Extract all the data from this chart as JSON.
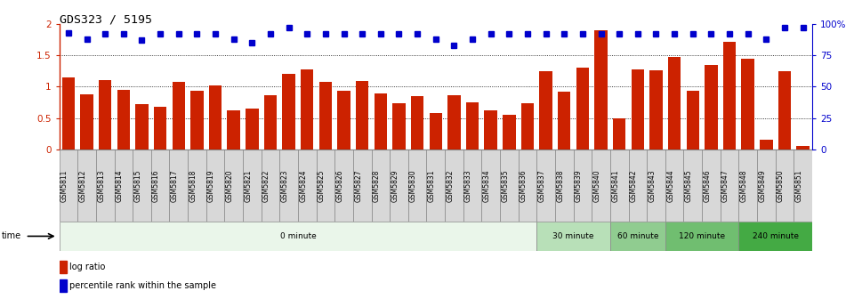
{
  "title": "GDS323 / 5195",
  "categories": [
    "GSM5811",
    "GSM5812",
    "GSM5813",
    "GSM5814",
    "GSM5815",
    "GSM5816",
    "GSM5817",
    "GSM5818",
    "GSM5819",
    "GSM5820",
    "GSM5821",
    "GSM5822",
    "GSM5823",
    "GSM5824",
    "GSM5825",
    "GSM5826",
    "GSM5827",
    "GSM5828",
    "GSM5829",
    "GSM5830",
    "GSM5831",
    "GSM5832",
    "GSM5833",
    "GSM5834",
    "GSM5835",
    "GSM5836",
    "GSM5837",
    "GSM5838",
    "GSM5839",
    "GSM5840",
    "GSM5841",
    "GSM5842",
    "GSM5843",
    "GSM5844",
    "GSM5845",
    "GSM5846",
    "GSM5847",
    "GSM5848",
    "GSM5849",
    "GSM5850",
    "GSM5851"
  ],
  "log_ratio": [
    1.15,
    0.88,
    1.1,
    0.95,
    0.72,
    0.68,
    1.08,
    0.93,
    1.02,
    0.63,
    0.65,
    0.86,
    1.2,
    1.27,
    1.08,
    0.93,
    1.09,
    0.89,
    0.73,
    0.85,
    0.58,
    0.86,
    0.75,
    0.62,
    0.55,
    0.74,
    1.25,
    0.92,
    1.3,
    1.9,
    0.5,
    1.28,
    1.26,
    1.48,
    0.93,
    1.35,
    1.72,
    1.45,
    0.16,
    1.25,
    0.05
  ],
  "percentile": [
    93,
    88,
    92,
    92,
    87,
    92,
    92,
    92,
    92,
    88,
    85,
    92,
    97,
    92,
    92,
    92,
    92,
    92,
    92,
    92,
    88,
    83,
    88,
    92,
    92,
    92,
    92,
    92,
    92,
    92,
    92,
    92,
    92,
    92,
    92,
    92,
    92,
    92,
    88,
    97,
    97
  ],
  "bar_color": "#cc2200",
  "dot_color": "#0000cc",
  "time_groups": [
    {
      "label": "0 minute",
      "start": 0,
      "end": 26,
      "color": "#eaf6ea"
    },
    {
      "label": "30 minute",
      "start": 26,
      "end": 30,
      "color": "#b8e0b8"
    },
    {
      "label": "60 minute",
      "start": 30,
      "end": 33,
      "color": "#90cc90"
    },
    {
      "label": "120 minute",
      "start": 33,
      "end": 37,
      "color": "#70be70"
    },
    {
      "label": "240 minute",
      "start": 37,
      "end": 41,
      "color": "#44aa44"
    }
  ],
  "ylim_left": [
    0,
    2
  ],
  "ylim_right": [
    0,
    100
  ],
  "yticks_left": [
    0,
    0.5,
    1.0,
    1.5,
    2.0
  ],
  "yticks_right": [
    0,
    25,
    50,
    75,
    100
  ],
  "ytick_labels_right": [
    "0",
    "25",
    "50",
    "75",
    "100%"
  ],
  "bar_width": 0.7,
  "bg_color": "#ffffff",
  "xtick_area_color": "#d8d8d8"
}
